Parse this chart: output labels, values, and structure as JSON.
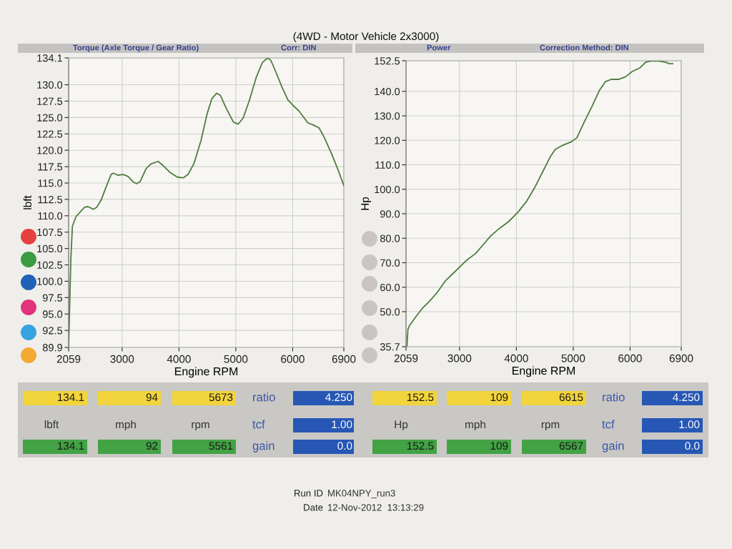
{
  "chart_data": [
    {
      "type": "line",
      "title": "(4WD - Motor Vehicle 2x3000)",
      "subtitle": "Torque (Axle Torque / Gear Ratio)",
      "annotations": [
        "Corr: DIN"
      ],
      "xlabel": "Engine RPM",
      "ylabel": "lbft",
      "x": [
        2059,
        2098,
        2125,
        2191,
        2339,
        2397,
        2494,
        2553,
        2631,
        2728,
        2806,
        2844,
        2922,
        3021,
        3105,
        3190,
        3253,
        3316,
        3422,
        3506,
        3633,
        3717,
        3844,
        3970,
        4076,
        4160,
        4265,
        4391,
        4496,
        4580,
        4664,
        4727,
        4832,
        4958,
        5043,
        5128,
        5234,
        5362,
        5468,
        5561,
        5617,
        5702,
        5809,
        5915,
        6000,
        6111,
        6266,
        6377,
        6465,
        6554,
        6687,
        6798,
        6900
      ],
      "series": [
        {
          "color": "#4f7d3e",
          "values": [
            90.0,
            103.3,
            108.4,
            109.9,
            111.3,
            111.4,
            111.0,
            111.3,
            112.4,
            114.6,
            116.3,
            116.5,
            116.2,
            116.3,
            116.0,
            115.2,
            114.9,
            115.2,
            117.2,
            117.9,
            118.3,
            117.7,
            116.6,
            115.9,
            115.8,
            116.3,
            118.0,
            121.6,
            125.6,
            127.9,
            128.7,
            128.4,
            126.4,
            124.3,
            124.0,
            124.9,
            127.5,
            131.2,
            133.4,
            134.1,
            133.7,
            132.0,
            129.7,
            127.7,
            126.9,
            126.0,
            124.2,
            123.8,
            123.4,
            122.0,
            119.4,
            117.0,
            114.6
          ]
        }
      ],
      "xlim": [
        2059,
        6900
      ],
      "xticks": [
        2059,
        3000,
        4000,
        5000,
        6000,
        6900
      ],
      "ylim": [
        89.9,
        134.1
      ],
      "yticks": [
        89.9,
        92.5,
        {
          "value": 95,
          "label": "95.0"
        },
        97.5,
        {
          "value": 100,
          "label": "100.0"
        },
        102.5,
        {
          "value": 105,
          "label": "105.0"
        },
        107.5,
        {
          "value": 110,
          "label": "110.0"
        },
        112.5,
        {
          "value": 115,
          "label": "115.0"
        },
        117.5,
        {
          "value": 120,
          "label": "120.0"
        },
        122.5,
        {
          "value": 125,
          "label": "125.0"
        },
        127.5,
        {
          "value": 130,
          "label": "130.0"
        },
        134.1
      ],
      "grid": true,
      "line_style": "solid"
    },
    {
      "type": "line",
      "subtitle": "Power",
      "annotations": [
        "Correction Method: DIN"
      ],
      "xlabel": "Engine RPM",
      "ylabel": "Hp",
      "x": [
        2075,
        2093,
        2122,
        2228,
        2354,
        2481,
        2608,
        2755,
        2903,
        3113,
        3279,
        3425,
        3550,
        3696,
        3863,
        4030,
        4177,
        4325,
        4473,
        4599,
        4684,
        4789,
        4958,
        5063,
        5188,
        5333,
        5458,
        5563,
        5667,
        5792,
        5917,
        6042,
        6167,
        6272,
        6377,
        6502,
        6628,
        6691,
        6753
      ],
      "series": [
        {
          "color": "#4f7d3e",
          "values": [
            36.0,
            42.9,
            44.4,
            47.8,
            51.6,
            54.5,
            57.9,
            62.7,
            66.0,
            70.8,
            73.7,
            77.6,
            81.0,
            83.9,
            86.8,
            90.7,
            95.0,
            100.8,
            107.6,
            113.4,
            116.3,
            117.7,
            119.3,
            121.0,
            127.2,
            134.0,
            140.3,
            143.9,
            144.9,
            144.9,
            145.9,
            148.2,
            149.5,
            151.9,
            152.5,
            152.4,
            151.9,
            151.3,
            151.3
          ]
        }
      ],
      "xlim": [
        2059,
        6900
      ],
      "xticks": [
        2059,
        3000,
        4000,
        5000,
        6000,
        6900
      ],
      "ylim": [
        35.7,
        152.5
      ],
      "yticks": [
        35.7,
        {
          "value": 50,
          "label": "50.0"
        },
        {
          "value": 60,
          "label": "60.0"
        },
        {
          "value": 70,
          "label": "70.0"
        },
        {
          "value": 80,
          "label": "80.0"
        },
        {
          "value": 90,
          "label": "90.0"
        },
        {
          "value": 100,
          "label": "100.0"
        },
        {
          "value": 110,
          "label": "110.0"
        },
        {
          "value": 120,
          "label": "120.0"
        },
        {
          "value": 130,
          "label": "130.0"
        },
        {
          "value": 140,
          "label": "140.0"
        },
        152.5
      ],
      "grid": true,
      "line_style": "solid"
    },
    {
      "type": "other",
      "annotations": [
        "134.1",
        "94",
        "5673",
        "ratio",
        "4.250",
        "lbft",
        "mph",
        "rpm",
        "tcf",
        "1.00",
        "134.1",
        "92",
        "5561",
        "gain",
        "0.0"
      ],
      "colors": [
        "#f2d43c",
        "#f2d43c",
        "#f2d43c",
        null,
        "#2757b4",
        null,
        null,
        null,
        null,
        "#2757b4",
        "#42a244",
        "#42a244",
        "#42a244",
        null,
        "#2757b4"
      ]
    },
    {
      "type": "other",
      "annotations": [
        "152.5",
        "109",
        "6615",
        "ratio",
        "4.250",
        "Hp",
        "mph",
        "rpm",
        "tcf",
        "1.00",
        "152.5",
        "109",
        "6567",
        "gain",
        "0.0"
      ],
      "colors": [
        "#f2d43c",
        "#f2d43c",
        "#f2d43c",
        null,
        "#2757b4",
        null,
        null,
        null,
        null,
        "#2757b4",
        "#42a244",
        "#42a244",
        "#42a244",
        null,
        "#2757b4"
      ]
    },
    {
      "type": "other",
      "annotations": [
        "Run ID",
        "MK04NPY_run3",
        "Date",
        "12-Nov-2012  13:13:29"
      ]
    }
  ]
}
